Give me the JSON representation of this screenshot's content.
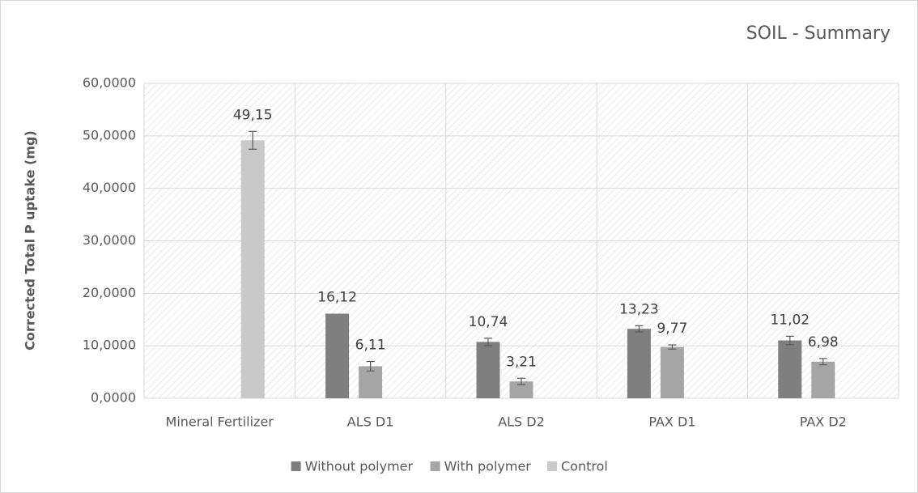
{
  "chart_data": {
    "type": "bar",
    "title": "SOIL - Summary",
    "y_label": "Corrected Total P uptake (mg)",
    "categories": [
      "Mineral Fertilizer",
      "ALS D1",
      "ALS D2",
      "PAX D1",
      "PAX D2"
    ],
    "series": [
      {
        "name": "Without polymer",
        "color": "#7f7f7f",
        "values": [
          null,
          16.12,
          10.74,
          13.23,
          11.02
        ],
        "value_labels": [
          null,
          "16,12",
          "10,74",
          "13,23",
          "11,02"
        ],
        "errors": [
          null,
          null,
          0.7,
          0.6,
          0.8
        ]
      },
      {
        "name": "With polymer",
        "color": "#a5a5a5",
        "values": [
          null,
          6.11,
          3.21,
          9.77,
          6.98
        ],
        "value_labels": [
          null,
          "6,11",
          "3,21",
          "9,77",
          "6,98"
        ],
        "errors": [
          null,
          0.9,
          0.6,
          0.4,
          0.6
        ]
      },
      {
        "name": "Control",
        "color": "#c9c9c9",
        "values": [
          49.15,
          null,
          null,
          null,
          null
        ],
        "value_labels": [
          "49,15",
          null,
          null,
          null,
          null
        ],
        "errors": [
          1.7,
          null,
          null,
          null,
          null
        ]
      }
    ],
    "ylim": [
      0,
      60
    ],
    "yticks": [
      {
        "value": 0,
        "label": "0,0000"
      },
      {
        "value": 10,
        "label": "10,0000"
      },
      {
        "value": 20,
        "label": "20,0000"
      },
      {
        "value": 30,
        "label": "30,0000"
      },
      {
        "value": 40,
        "label": "40,0000"
      },
      {
        "value": 50,
        "label": "50,0000"
      },
      {
        "value": 60,
        "label": "60,0000"
      }
    ],
    "grid": true,
    "legend": "bottom"
  }
}
